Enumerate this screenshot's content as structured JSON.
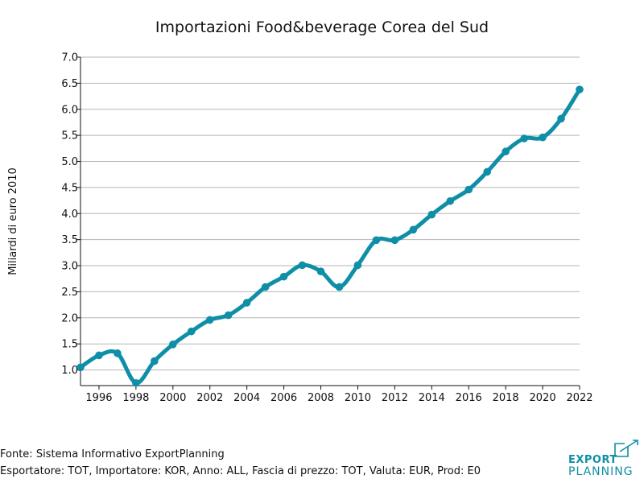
{
  "chart_data": {
    "type": "line",
    "title": "Importazioni Food&beverage Corea del Sud",
    "xlabel": "",
    "ylabel": "Miliardi di euro 2010",
    "xlim": [
      1995,
      2022
    ],
    "ylim": [
      0.7,
      7.0
    ],
    "y_ticks": [
      "1.0",
      "1.5",
      "2.0",
      "2.5",
      "3.0",
      "3.5",
      "4.0",
      "4.5",
      "5.0",
      "5.5",
      "6.0",
      "6.5",
      "7.0"
    ],
    "x_ticks": [
      "1996",
      "1998",
      "2000",
      "2002",
      "2004",
      "2006",
      "2008",
      "2010",
      "2012",
      "2014",
      "2016",
      "2018",
      "2020",
      "2022"
    ],
    "grid": true,
    "series": [
      {
        "name": "Importazioni",
        "x": [
          1995,
          1996,
          1997,
          1998,
          1999,
          2000,
          2001,
          2002,
          2003,
          2004,
          2005,
          2006,
          2007,
          2008,
          2009,
          2010,
          2011,
          2012,
          2013,
          2014,
          2015,
          2016,
          2017,
          2018,
          2019,
          2020,
          2021,
          2022
        ],
        "values": [
          1.05,
          1.28,
          1.32,
          0.75,
          1.17,
          1.49,
          1.74,
          1.96,
          2.05,
          2.29,
          2.59,
          2.79,
          3.01,
          2.89,
          2.59,
          3.01,
          3.49,
          3.49,
          3.69,
          3.98,
          4.24,
          4.46,
          4.8,
          5.19,
          5.44,
          5.46,
          5.82,
          6.38
        ]
      }
    ]
  },
  "colors": {
    "line": "#0f8fa7",
    "grid": "#b5b5b5",
    "logo": "#0f8fa7"
  },
  "footer": {
    "source": "Fonte: Sistema Informativo ExportPlanning",
    "details": "Esportatore: TOT, Importatore: KOR, Anno: ALL, Fascia di prezzo: TOT, Valuta: EUR, Prod: E0"
  },
  "logo": {
    "line1": "EXPORT",
    "line2": "PLANNING"
  }
}
